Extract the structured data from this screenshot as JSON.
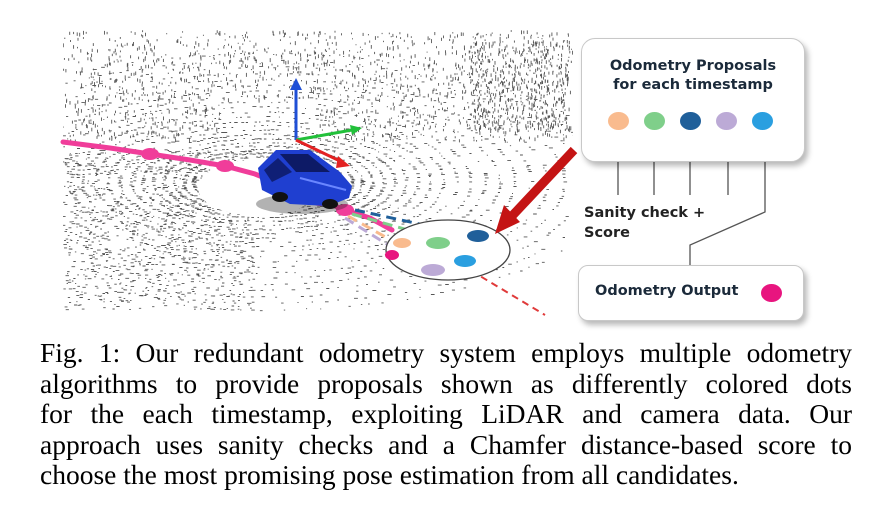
{
  "figure": {
    "proposals_title_line1": "Odometry Proposals",
    "proposals_title_line2": "for each timestamp",
    "proposal_colors": [
      "#f9bb8e",
      "#7fcf8a",
      "#1f5f9a",
      "#bcaad6",
      "#2a9fe0"
    ],
    "sanity_label_line1": "Sanity check +",
    "sanity_label_line2": "Score",
    "output_label": "Odometry Output",
    "output_color": "#e8157f",
    "axis_colors": {
      "up": "#1f4fd6",
      "forward": "#22c03a",
      "side": "#e32222"
    },
    "car_color": "#1f3fd0",
    "trajectory_color": "#f03d9a",
    "arrow_color": "#c41414"
  },
  "caption": {
    "line1": "Fig. 1: Our redundant odometry system employs multiple odometry",
    "line2": "algorithms to provide proposals shown as differently colored dots",
    "line3": "for the each timestamp, exploiting LiDAR and camera data. Our",
    "line4": "approach uses sanity checks and a Chamfer distance-based score to",
    "line5": "choose the most promising pose estimation from all candidates."
  }
}
